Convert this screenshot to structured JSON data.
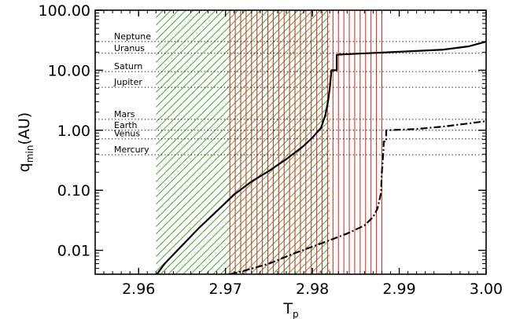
{
  "chart_data": {
    "type": "line",
    "xlabel": "T",
    "xlabel_sub": "p",
    "ylabel": "q",
    "ylabel_sub": "min",
    "ylabel_unit": "(AU)",
    "xlim": [
      2.955,
      3.0
    ],
    "ylim": [
      0.004,
      100
    ],
    "yscale": "log",
    "x_ticks": [
      2.96,
      2.97,
      2.98,
      2.99,
      3.0
    ],
    "x_tick_labels": [
      "2.96",
      "2.97",
      "2.98",
      "2.99",
      "3.00"
    ],
    "y_ticks": [
      0.01,
      0.1,
      1,
      10,
      100
    ],
    "y_tick_labels": [
      "0.01",
      "0.10",
      "1.00",
      "10.00",
      "100.00"
    ],
    "reference_lines": [
      {
        "label": "Neptune",
        "q": 30.1
      },
      {
        "label": "Uranus",
        "q": 19.2
      },
      {
        "label": "Saturn",
        "q": 9.5
      },
      {
        "label": "Jupiter",
        "q": 5.2
      },
      {
        "label": "Mars",
        "q": 1.52
      },
      {
        "label": "Earth",
        "q": 1.0
      },
      {
        "label": "Venus",
        "q": 0.72
      },
      {
        "label": "Mercury",
        "q": 0.39
      }
    ],
    "regions": [
      {
        "name": "green-hatch",
        "color": "#44a832",
        "x_range": [
          2.962,
          2.982
        ]
      },
      {
        "name": "red-lines",
        "color": "#e0322c",
        "x_range": [
          2.9705,
          2.988
        ],
        "count": 29
      }
    ],
    "series": [
      {
        "style": "solid",
        "x": [
          2.9621,
          2.963,
          2.965,
          2.967,
          2.969,
          2.971,
          2.973,
          2.975,
          2.977,
          2.979,
          2.98,
          2.981,
          2.9815,
          2.9818,
          2.982,
          2.9822,
          2.9822,
          2.9828,
          2.9828,
          2.983,
          2.985,
          2.99,
          2.995,
          2.998,
          3.0
        ],
        "y": [
          0.004,
          0.006,
          0.012,
          0.024,
          0.045,
          0.085,
          0.14,
          0.21,
          0.33,
          0.55,
          0.75,
          1.1,
          1.8,
          3.0,
          5.0,
          9.8,
          10.0,
          10.0,
          18.0,
          18.2,
          18.8,
          20.3,
          22.0,
          25.0,
          30.0
        ]
      },
      {
        "style": "dash-dot",
        "x": [
          2.9705,
          2.972,
          2.975,
          2.978,
          2.981,
          2.984,
          2.986,
          2.987,
          2.9875,
          2.9879,
          2.988,
          2.9882,
          2.9882,
          2.9885,
          2.9885,
          2.992,
          2.995,
          2.998,
          3.0
        ],
        "y": [
          0.004,
          0.0045,
          0.006,
          0.009,
          0.013,
          0.019,
          0.026,
          0.036,
          0.05,
          0.09,
          0.2,
          0.5,
          0.65,
          0.65,
          1.0,
          1.05,
          1.15,
          1.3,
          1.42
        ]
      }
    ]
  }
}
